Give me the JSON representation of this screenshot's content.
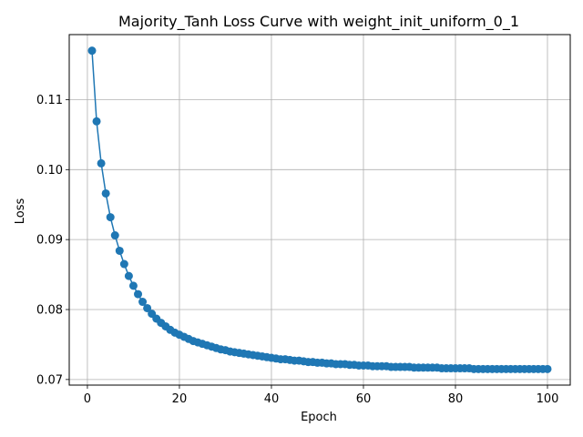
{
  "chart_data": {
    "type": "line",
    "title": "Majority_Tanh Loss Curve with weight_init_uniform_0_1",
    "xlabel": "Epoch",
    "ylabel": "Loss",
    "xlim": [
      -3.95,
      104.95
    ],
    "ylim": [
      0.0692,
      0.1193
    ],
    "grid": true,
    "x_ticks": [
      0,
      20,
      40,
      60,
      80,
      100
    ],
    "y_ticks": [
      0.07,
      0.08,
      0.09,
      0.1,
      0.11
    ],
    "y_tick_labels": [
      "0.07",
      "0.08",
      "0.09",
      "0.10",
      "0.11"
    ],
    "series_color": "#1f77b4",
    "series": [
      {
        "x": [
          1,
          2,
          3,
          4,
          5,
          6,
          7,
          8,
          9,
          10,
          11,
          12,
          13,
          14,
          15,
          16,
          17,
          18,
          19,
          20,
          21,
          22,
          23,
          24,
          25,
          26,
          27,
          28,
          29,
          30,
          31,
          32,
          33,
          34,
          35,
          36,
          37,
          38,
          39,
          40,
          41,
          42,
          43,
          44,
          45,
          46,
          47,
          48,
          49,
          50,
          51,
          52,
          53,
          54,
          55,
          56,
          57,
          58,
          59,
          60,
          61,
          62,
          63,
          64,
          65,
          66,
          67,
          68,
          69,
          70,
          71,
          72,
          73,
          74,
          75,
          76,
          77,
          78,
          79,
          80,
          81,
          82,
          83,
          84,
          85,
          86,
          87,
          88,
          89,
          90,
          91,
          92,
          93,
          94,
          95,
          96,
          97,
          98,
          99,
          100
        ],
        "values": [
          0.117,
          0.1069,
          0.1009,
          0.0966,
          0.0932,
          0.0906,
          0.0884,
          0.0865,
          0.0848,
          0.0834,
          0.0822,
          0.0811,
          0.0802,
          0.0794,
          0.0787,
          0.0781,
          0.0776,
          0.0771,
          0.0767,
          0.0764,
          0.0761,
          0.0758,
          0.0755,
          0.0753,
          0.0751,
          0.0749,
          0.0747,
          0.0745,
          0.0743,
          0.0742,
          0.074,
          0.0739,
          0.0738,
          0.0737,
          0.0736,
          0.0735,
          0.0734,
          0.0733,
          0.0732,
          0.0731,
          0.073,
          0.0729,
          0.0729,
          0.0728,
          0.0727,
          0.0727,
          0.0726,
          0.0725,
          0.0725,
          0.0724,
          0.0724,
          0.0723,
          0.0723,
          0.0722,
          0.0722,
          0.0722,
          0.0721,
          0.0721,
          0.072,
          0.072,
          0.072,
          0.0719,
          0.0719,
          0.0719,
          0.0719,
          0.0718,
          0.0718,
          0.0718,
          0.0718,
          0.0718,
          0.0717,
          0.0717,
          0.0717,
          0.0717,
          0.0717,
          0.0717,
          0.0716,
          0.0716,
          0.0716,
          0.0716,
          0.0716,
          0.0716,
          0.0716,
          0.0715,
          0.0715,
          0.0715,
          0.0715,
          0.0715,
          0.0715,
          0.0715,
          0.0715,
          0.0715,
          0.0715,
          0.0715,
          0.0715,
          0.0715,
          0.0715,
          0.0715,
          0.0715,
          0.0715
        ]
      }
    ]
  }
}
